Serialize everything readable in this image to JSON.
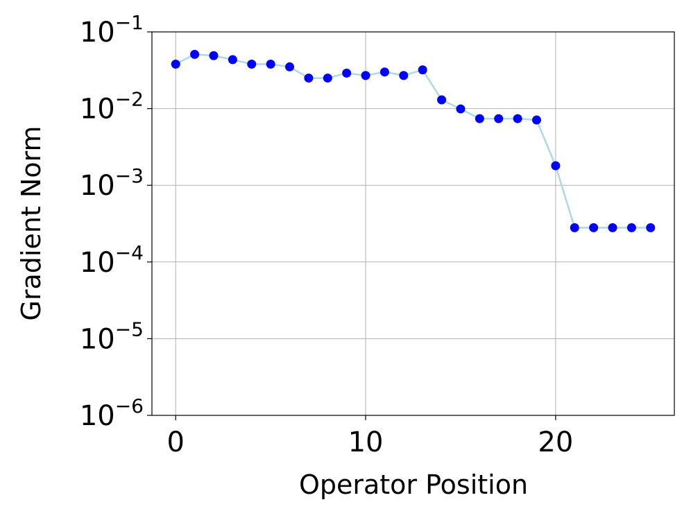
{
  "chart_data": {
    "type": "scatter-line",
    "x_label": "Operator Position",
    "y_label": "Gradient Norm",
    "x": [
      0,
      1,
      2,
      3,
      4,
      5,
      6,
      7,
      8,
      9,
      10,
      11,
      12,
      13,
      14,
      15,
      16,
      17,
      18,
      19,
      20,
      21,
      22,
      23,
      24,
      25
    ],
    "values": [
      0.038,
      0.051,
      0.049,
      0.0435,
      0.038,
      0.038,
      0.035,
      0.025,
      0.025,
      0.029,
      0.027,
      0.03,
      0.027,
      0.032,
      0.013,
      0.0099,
      0.0074,
      0.0074,
      0.0074,
      0.0071,
      0.0018,
      0.00028,
      0.00028,
      0.00028,
      0.00028,
      0.00028
    ],
    "color": "#0000ff",
    "line_color": "#add8e6",
    "xlim": [
      -1.25,
      26.25
    ],
    "xticks": [
      0,
      10,
      20
    ],
    "ylim": [
      1e-06,
      0.1
    ],
    "yticks": [
      {
        "value": 0.1,
        "label": "10−1"
      },
      {
        "value": 0.01,
        "label": "10−2"
      },
      {
        "value": 0.001,
        "label": "10−3"
      },
      {
        "value": 0.0001,
        "label": "10−4"
      },
      {
        "value": 1e-05,
        "label": "10−5"
      },
      {
        "value": 1e-06,
        "label": "10−6"
      }
    ],
    "log_y": true,
    "grid": true
  }
}
